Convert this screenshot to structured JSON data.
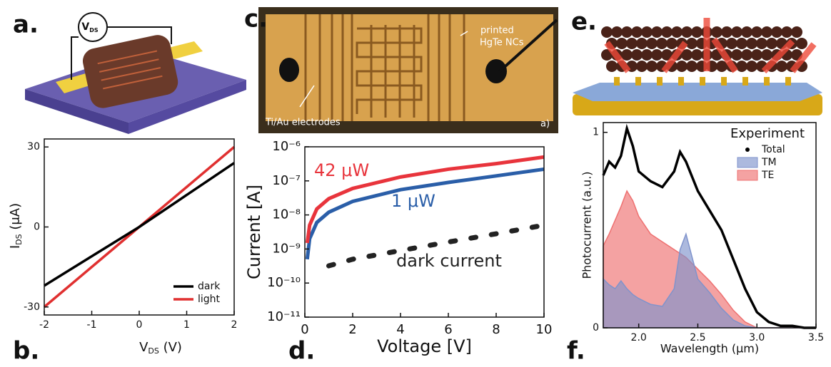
{
  "panels": {
    "labels": [
      "a.",
      "b.",
      "c.",
      "d.",
      "e.",
      "f."
    ],
    "a": {
      "meter": "V",
      "meter_sub": "DS"
    },
    "c": {
      "note_lines": [
        "printed",
        "HgTe NCs"
      ],
      "electrodes": "Ti/Au electrodes",
      "corner": "a)"
    }
  },
  "chart_data": [
    {
      "type": "line",
      "x": [
        -2,
        -1,
        0,
        1,
        2
      ],
      "series": [
        {
          "name": "dark",
          "color": "#000000",
          "style": "line",
          "values": [
            -22,
            -11,
            0,
            12,
            24
          ]
        },
        {
          "name": "light",
          "color": "#e03030",
          "style": "line",
          "values": [
            -30,
            -15,
            0,
            15,
            30
          ]
        }
      ],
      "xlim": [
        -2,
        2
      ],
      "ylim": [
        -33,
        33
      ],
      "xticks": [
        -2,
        -1,
        0,
        1,
        2
      ],
      "yticks": [
        -30,
        0,
        30
      ],
      "xlabel": {
        "main": "V",
        "sub": "DS",
        "unit": " (V)"
      },
      "ylabel": {
        "main": "I",
        "sub": "DS",
        "unit": " (μA)"
      },
      "legend": "lower right"
    },
    {
      "type": "line",
      "ylog": true,
      "x": [
        0.1,
        0.2,
        0.5,
        1,
        2,
        4,
        6,
        8,
        10
      ],
      "series": [
        {
          "name": "42 μW",
          "color": "#e8343c",
          "style": "line",
          "values": [
            1.5e-09,
            5e-09,
            1.5e-08,
            3e-08,
            6e-08,
            1.3e-07,
            2.2e-07,
            3.2e-07,
            5e-07
          ]
        },
        {
          "name": "1 μW",
          "color": "#2a5ea8",
          "style": "line",
          "values": [
            5e-10,
            2e-09,
            6e-09,
            1.2e-08,
            2.5e-08,
            5.5e-08,
            9e-08,
            1.4e-07,
            2.2e-07
          ]
        },
        {
          "name": "dark current",
          "color": "#222222",
          "style": "dotted",
          "values": [
            null,
            null,
            null,
            3.2e-10,
            5e-10,
            9e-10,
            1.6e-09,
            2.8e-09,
            5e-09
          ]
        }
      ],
      "xlim": [
        0,
        10
      ],
      "ylim": [
        1e-11,
        1e-06
      ],
      "xticks": [
        0,
        2,
        4,
        6,
        8,
        10
      ],
      "yticks": [
        {
          "value": 1e-11,
          "label": "10⁻¹¹"
        },
        {
          "value": 1e-10,
          "label": "10⁻¹⁰"
        },
        {
          "value": 1e-09,
          "label": "10⁻⁹"
        },
        {
          "value": 1e-08,
          "label": "10⁻⁸"
        },
        {
          "value": 1e-07,
          "label": "10⁻⁷"
        },
        {
          "value": 1e-06,
          "label": "10⁻⁶"
        }
      ],
      "xlabel": "Voltage [V]",
      "ylabel": "Current [A]"
    },
    {
      "type": "line",
      "x": [
        1.7,
        1.75,
        1.8,
        1.85,
        1.9,
        1.95,
        2.0,
        2.1,
        2.2,
        2.3,
        2.35,
        2.4,
        2.5,
        2.6,
        2.7,
        2.8,
        2.9,
        3.0,
        3.1,
        3.2,
        3.3,
        3.4,
        3.5
      ],
      "series": [
        {
          "name": "Total",
          "color": "#000000",
          "style": "line",
          "values": [
            0.78,
            0.85,
            0.82,
            0.88,
            1.02,
            0.93,
            0.8,
            0.75,
            0.72,
            0.8,
            0.9,
            0.85,
            0.7,
            0.6,
            0.5,
            0.35,
            0.2,
            0.08,
            0.03,
            0.01,
            0.01,
            0,
            0
          ]
        },
        {
          "name": "TM",
          "color": "#7f93cc",
          "style": "area",
          "values": [
            0.25,
            0.22,
            0.2,
            0.24,
            0.2,
            0.17,
            0.15,
            0.12,
            0.11,
            0.2,
            0.4,
            0.48,
            0.25,
            0.18,
            0.1,
            0.04,
            0.01,
            0,
            0,
            0,
            0,
            0,
            0
          ]
        },
        {
          "name": "TE",
          "color": "#ee7070",
          "style": "area",
          "values": [
            0.42,
            0.48,
            0.55,
            0.62,
            0.7,
            0.65,
            0.57,
            0.48,
            0.44,
            0.4,
            0.38,
            0.36,
            0.3,
            0.24,
            0.17,
            0.09,
            0.03,
            0,
            0,
            0,
            0,
            0,
            0
          ]
        }
      ],
      "xlim": [
        1.7,
        3.5
      ],
      "ylim": [
        0,
        1.05
      ],
      "xticks": [
        {
          "value": 2,
          "label": "2.0"
        },
        2.5,
        {
          "value": 3,
          "label": "3.0"
        },
        3.5
      ],
      "yticks": [
        0,
        1
      ],
      "xlabel": "Wavelength (μm)",
      "ylabel": "Photocurrent (a.u.)",
      "legend_title": "Experiment",
      "legend": "upper right"
    }
  ]
}
